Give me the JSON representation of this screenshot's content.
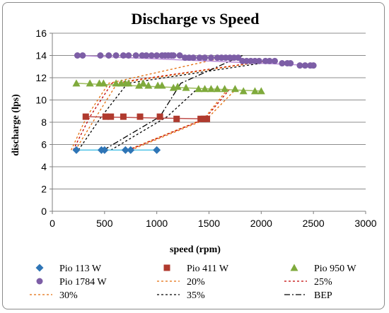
{
  "chart_data": {
    "type": "scatter",
    "title": "Discharge vs Speed",
    "xlabel": "speed (rpm)",
    "ylabel": "discharge (lps)",
    "xlim": [
      0,
      3000
    ],
    "ylim": [
      0,
      16
    ],
    "xticks": [
      0,
      500,
      1000,
      1500,
      2000,
      2500,
      3000
    ],
    "yticks": [
      0,
      2,
      4,
      6,
      8,
      10,
      12,
      14,
      16
    ],
    "grid": true,
    "legend_position": "bottom",
    "series": [
      {
        "name": "Pio 113 W",
        "kind": "markers",
        "marker": "diamond",
        "color": "#2e75b6",
        "line_color": "#4fc3e8",
        "x": [
          230,
          470,
          500,
          700,
          750,
          1000
        ],
        "y": [
          5.5,
          5.5,
          5.5,
          5.5,
          5.5,
          5.5
        ]
      },
      {
        "name": "Pio 411 W",
        "kind": "markers",
        "marker": "square",
        "color": "#b03a2e",
        "line_color": "#c0504d",
        "x": [
          320,
          510,
          560,
          680,
          840,
          1030,
          1190,
          1420,
          1450,
          1480
        ],
        "y": [
          8.5,
          8.5,
          8.5,
          8.5,
          8.5,
          8.5,
          8.3,
          8.3,
          8.3,
          8.3
        ]
      },
      {
        "name": "Pio 950 W",
        "kind": "markers",
        "marker": "triangle",
        "color": "#7faa3c",
        "line_color": "#9bbb59",
        "x": [
          230,
          360,
          450,
          490,
          610,
          660,
          700,
          730,
          830,
          870,
          920,
          1010,
          1050,
          1160,
          1200,
          1280,
          1400,
          1460,
          1520,
          1580,
          1650,
          1750,
          1830,
          1940,
          2000
        ],
        "y": [
          11.5,
          11.5,
          11.5,
          11.5,
          11.5,
          11.5,
          11.5,
          11.5,
          11.3,
          11.5,
          11.3,
          11.3,
          11.3,
          11.1,
          11.2,
          11.1,
          11.0,
          11.0,
          11.0,
          11.0,
          11.0,
          11.0,
          10.8,
          10.8,
          10.8
        ],
        "trend_x": [
          230,
          2000
        ],
        "trend_y": [
          11.5,
          10.8
        ]
      },
      {
        "name": "Pio 1784 W",
        "kind": "markers",
        "marker": "circle",
        "color": "#7d5ea6",
        "line_color": "#b98bd8",
        "x": [
          240,
          290,
          460,
          540,
          610,
          680,
          730,
          800,
          860,
          900,
          950,
          1000,
          1050,
          1080,
          1110,
          1140,
          1160,
          1220,
          1270,
          1310,
          1350,
          1410,
          1460,
          1520,
          1580,
          1620,
          1660,
          1700,
          1740,
          1780,
          1820,
          1860,
          1900,
          1940,
          1980,
          2040,
          2080,
          2130,
          2200,
          2250,
          2280,
          2370,
          2420,
          2470,
          2500
        ],
        "y": [
          14.0,
          14.0,
          14.0,
          14.0,
          14.0,
          14.0,
          14.0,
          14.0,
          14.0,
          14.0,
          14.0,
          14.0,
          14.0,
          14.0,
          14.0,
          14.0,
          14.0,
          14.0,
          13.8,
          13.8,
          13.8,
          13.8,
          13.8,
          13.8,
          13.8,
          13.8,
          13.8,
          13.8,
          13.8,
          13.8,
          13.5,
          13.5,
          13.5,
          13.5,
          13.5,
          13.5,
          13.5,
          13.5,
          13.3,
          13.3,
          13.3,
          13.1,
          13.1,
          13.1,
          13.1
        ],
        "trend_x": [
          240,
          2500
        ],
        "trend_y": [
          14.0,
          13.1
        ]
      },
      {
        "name": "20%",
        "kind": "line",
        "dash": "3,3",
        "color": "#e46c0a",
        "x": [
          180,
          330,
          540,
          1730
        ],
        "y": [
          5.5,
          8.5,
          11.5,
          14.0
        ]
      },
      {
        "name": "25%",
        "kind": "line",
        "dash": "3,3",
        "color": "#c00000",
        "x": [
          200,
          360,
          570,
          2040
        ],
        "y": [
          5.5,
          8.5,
          11.5,
          13.5
        ]
      },
      {
        "name": "30%",
        "kind": "line",
        "dash": "3,3",
        "color": "#e46c0a",
        "x": [
          220,
          420,
          620,
          2060
        ],
        "y": [
          5.5,
          8.5,
          11.5,
          13.5
        ]
      },
      {
        "name": "35%",
        "kind": "line",
        "dash": "3,3",
        "color": "#000000",
        "x": [
          250,
          470,
          720,
          2140
        ],
        "y": [
          5.5,
          8.5,
          11.5,
          13.5
        ]
      },
      {
        "name": "BEP",
        "kind": "line",
        "dash": "8,3,2,3",
        "color": "#000000",
        "x": [
          490,
          1030,
          1230,
          1820
        ],
        "y": [
          5.5,
          8.5,
          11.5,
          14.0
        ]
      }
    ],
    "extra_dashed_lines": [
      {
        "color": "#e46c0a",
        "x": [
          720,
          1450,
          1680
        ],
        "y": [
          5.5,
          8.3,
          11.0
        ]
      },
      {
        "color": "#c00000",
        "x": [
          730,
          1460,
          1700
        ],
        "y": [
          5.5,
          8.3,
          11.0
        ]
      },
      {
        "color": "#e46c0a",
        "x": [
          750,
          1480,
          1760
        ],
        "y": [
          5.5,
          8.3,
          11.0
        ]
      },
      {
        "color": "#000000",
        "x": [
          560,
          1100,
          1400
        ],
        "y": [
          5.5,
          8.5,
          11.1
        ]
      }
    ]
  }
}
